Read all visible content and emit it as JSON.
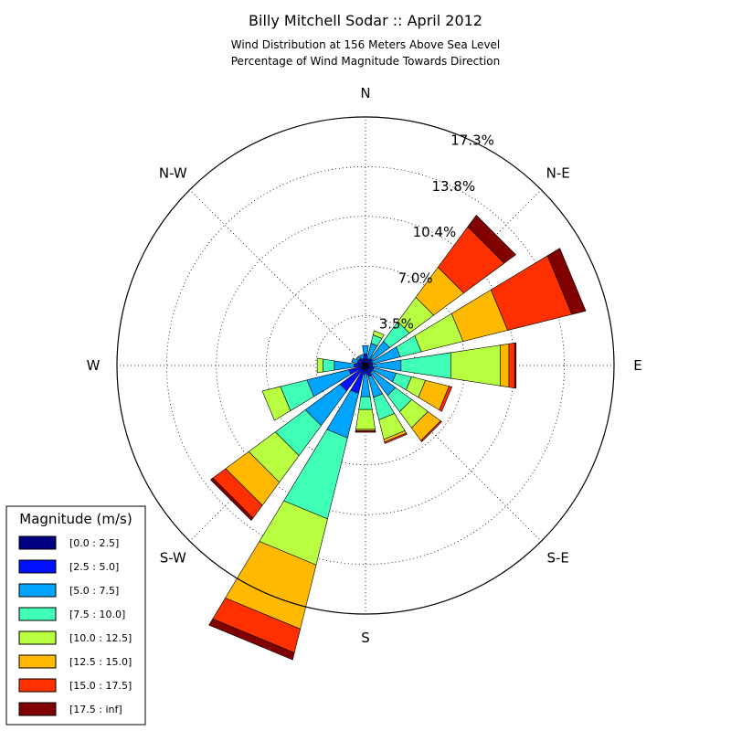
{
  "chart_data": {
    "type": "windrose",
    "title": "Billy Mitchell Sodar :: April 2012",
    "subtitle_lines": [
      "Wind Distribution at 156 Meters Above Sea Level",
      "Percentage of Wind Magnitude Towards Direction"
    ],
    "direction_labels": [
      "N",
      "N-E",
      "E",
      "S-E",
      "S",
      "S-W",
      "W",
      "N-W"
    ],
    "ring_labels": [
      "3.5%",
      "7.0%",
      "10.4%",
      "13.8%",
      "17.3%"
    ],
    "rmax": 17.3,
    "grid": true,
    "legend": {
      "title": "Magnitude (m/s)",
      "placement": "bottom-left",
      "entries": [
        "[0.0 : 2.5]",
        "[2.5 : 5.0]",
        "[5.0 : 7.5]",
        "[7.5 : 10.0]",
        "[10.0 : 12.5]",
        "[12.5 : 15.0]",
        "[15.0 : 17.5]",
        "[17.5 : inf]"
      ]
    },
    "bin_colors": [
      "#000080",
      "#0010ff",
      "#00a4ff",
      "#40ffb7",
      "#b7ff40",
      "#ffb900",
      "#ff3000",
      "#800000"
    ],
    "sector_angles_deg": [
      0,
      22.5,
      45,
      67.5,
      90,
      112.5,
      135,
      157.5,
      180,
      202.5,
      225,
      247.5,
      270,
      292.5,
      315,
      337.5
    ],
    "sector_cumulative_percent": [
      [
        0.2,
        0.8,
        1.4,
        1.4,
        1.4,
        1.4,
        1.4,
        1.4
      ],
      [
        0.2,
        0.5,
        1.6,
        2.2,
        2.5,
        2.5,
        2.5,
        2.5
      ],
      [
        0.2,
        0.6,
        2.1,
        3.8,
        5.9,
        8.5,
        12.0,
        13.0
      ],
      [
        0.2,
        0.5,
        2.5,
        4.0,
        7.0,
        10.2,
        14.8,
        15.8
      ],
      [
        0.2,
        0.5,
        2.5,
        6.0,
        9.5,
        10.1,
        10.5,
        10.6
      ],
      [
        0.2,
        0.6,
        2.2,
        3.3,
        4.3,
        6.0,
        6.2,
        6.2
      ],
      [
        0.2,
        0.6,
        2.6,
        4.0,
        5.4,
        6.5,
        6.6,
        6.6
      ],
      [
        0.2,
        0.8,
        2.3,
        3.9,
        5.3,
        5.5,
        5.6,
        5.6
      ],
      [
        0.2,
        0.6,
        2.2,
        3.1,
        4.5,
        4.6,
        4.6,
        4.7
      ],
      [
        0.3,
        2.0,
        5.2,
        11.0,
        14.3,
        18.9,
        20.6,
        21.1
      ],
      [
        0.3,
        2.2,
        5.2,
        7.8,
        10.1,
        12.1,
        13.2,
        13.4
      ],
      [
        0.2,
        1.2,
        4.2,
        6.1,
        7.4,
        7.4,
        7.4,
        7.4
      ],
      [
        0.2,
        0.8,
        2.2,
        3.0,
        3.4,
        3.4,
        3.4,
        3.4
      ],
      [
        0.2,
        0.6,
        1.0,
        1.0,
        1.0,
        1.0,
        1.0,
        1.0
      ],
      [
        0.2,
        0.6,
        0.8,
        0.8,
        0.8,
        0.8,
        0.8,
        0.8
      ],
      [
        0.2,
        0.5,
        0.8,
        0.8,
        0.8,
        0.8,
        0.8,
        0.8
      ]
    ]
  }
}
